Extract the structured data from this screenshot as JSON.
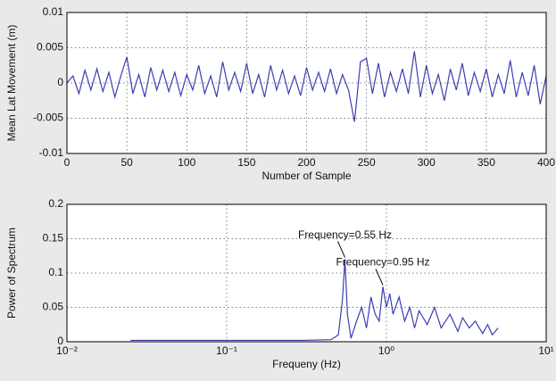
{
  "chart_data": [
    {
      "type": "line",
      "ylabel": "Mean Lat Movement (m)",
      "xlabel": "Number of Sample",
      "xlim": [
        0,
        400
      ],
      "xticks": [
        0,
        50,
        100,
        150,
        200,
        250,
        300,
        350,
        400
      ],
      "ylim": [
        -0.01,
        0.01
      ],
      "yticks": [
        -0.01,
        -0.005,
        0,
        0.005,
        0.01
      ],
      "grid": true,
      "log_x": false,
      "series": [
        {
          "color": "#3b3fb0",
          "x": [
            0,
            5,
            10,
            15,
            20,
            25,
            30,
            35,
            40,
            45,
            50,
            55,
            60,
            65,
            70,
            75,
            80,
            85,
            90,
            95,
            100,
            105,
            110,
            115,
            120,
            125,
            130,
            135,
            140,
            145,
            150,
            155,
            160,
            165,
            170,
            175,
            180,
            185,
            190,
            195,
            200,
            205,
            210,
            215,
            220,
            225,
            230,
            235,
            240,
            245,
            250,
            255,
            260,
            265,
            270,
            275,
            280,
            285,
            290,
            295,
            300,
            305,
            310,
            315,
            320,
            325,
            330,
            335,
            340,
            345,
            350,
            355,
            360,
            365,
            370,
            375,
            380,
            385,
            390,
            395,
            400
          ],
          "values": [
            0,
            0.001,
            -0.0015,
            0.0018,
            -0.001,
            0.002,
            -0.0012,
            0.0015,
            -0.002,
            0.001,
            0.0037,
            -0.0015,
            0.0012,
            -0.002,
            0.0022,
            -0.001,
            0.0018,
            -0.0012,
            0.0015,
            -0.0018,
            0.0012,
            -0.001,
            0.0025,
            -0.0015,
            0.001,
            -0.002,
            0.003,
            -0.001,
            0.0015,
            -0.0012,
            0.0028,
            -0.0015,
            0.0012,
            -0.002,
            0.0025,
            -0.001,
            0.0018,
            -0.0015,
            0.001,
            -0.0018,
            0.0022,
            -0.001,
            0.0015,
            -0.0012,
            0.002,
            -0.0015,
            0.0012,
            -0.001,
            -0.0055,
            0.003,
            0.0035,
            -0.0015,
            0.0028,
            -0.002,
            0.0015,
            -0.0012,
            0.002,
            -0.0015,
            0.0045,
            -0.002,
            0.0025,
            -0.0015,
            0.0012,
            -0.0025,
            0.002,
            -0.001,
            0.0028,
            -0.0018,
            0.0015,
            -0.0012,
            0.002,
            -0.002,
            0.0012,
            -0.0015,
            0.0032,
            -0.002,
            0.0015,
            -0.0018,
            0.0025,
            -0.003,
            0.001
          ]
        }
      ]
    },
    {
      "type": "line",
      "ylabel": "Power of Spectrum",
      "xlabel": "Frequeny (Hz)",
      "xlim": [
        0.01,
        10
      ],
      "xticks": [
        {
          "value": 0.01,
          "label": "10⁻²"
        },
        {
          "value": 0.1,
          "label": "10⁻¹"
        },
        {
          "value": 1,
          "label": "10⁰"
        },
        {
          "value": 10,
          "label": "10¹"
        }
      ],
      "ylim": [
        0,
        0.2
      ],
      "yticks": [
        0,
        0.05,
        0.1,
        0.15,
        0.2
      ],
      "grid": true,
      "log_x": true,
      "series": [
        {
          "color": "#3b3fb0",
          "x": [
            0.025,
            0.1,
            0.3,
            0.45,
            0.5,
            0.53,
            0.55,
            0.57,
            0.6,
            0.65,
            0.7,
            0.75,
            0.8,
            0.85,
            0.9,
            0.95,
            1.0,
            1.05,
            1.1,
            1.2,
            1.3,
            1.4,
            1.5,
            1.6,
            1.8,
            2,
            2.2,
            2.5,
            2.8,
            3,
            3.3,
            3.6,
            4,
            4.3,
            4.6,
            5
          ],
          "values": [
            0.002,
            0.002,
            0.002,
            0.003,
            0.01,
            0.06,
            0.12,
            0.04,
            0.005,
            0.03,
            0.05,
            0.02,
            0.065,
            0.04,
            0.03,
            0.08,
            0.05,
            0.07,
            0.04,
            0.065,
            0.03,
            0.05,
            0.02,
            0.045,
            0.025,
            0.05,
            0.02,
            0.04,
            0.015,
            0.035,
            0.02,
            0.03,
            0.012,
            0.025,
            0.01,
            0.02
          ]
        }
      ],
      "annotations": [
        {
          "text": "Frequency=0.55 Hz",
          "x": 0.55,
          "y": 0.12
        },
        {
          "text": "Frequency=0.95 Hz",
          "x": 0.95,
          "y": 0.08
        }
      ]
    }
  ]
}
